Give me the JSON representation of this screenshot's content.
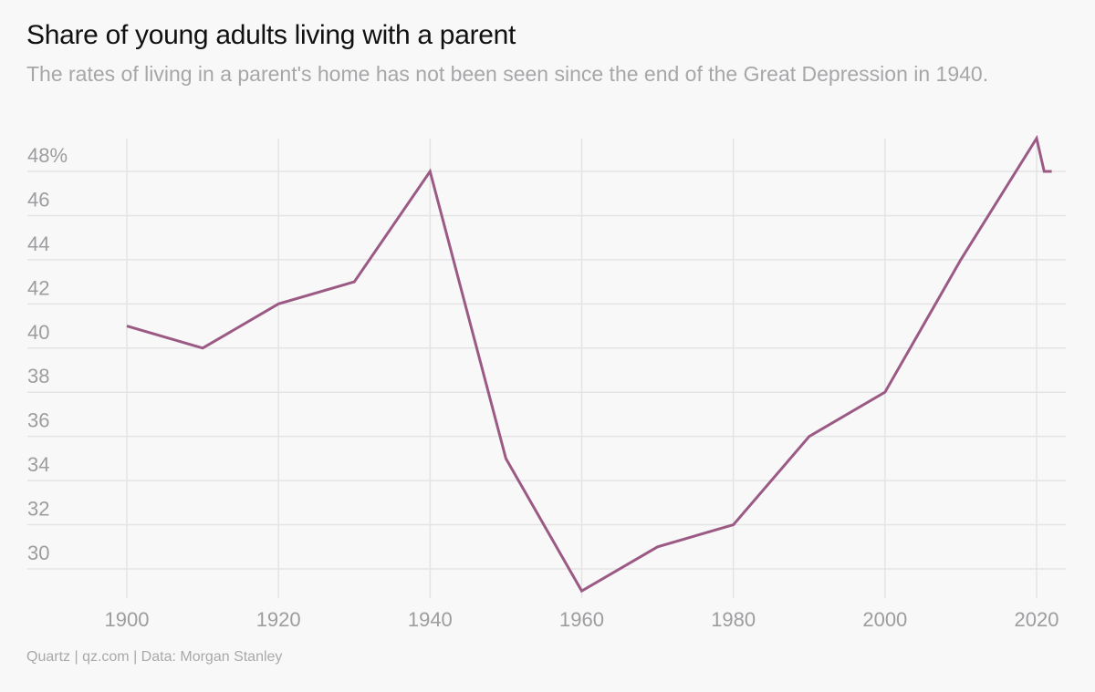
{
  "chart_data": {
    "type": "line",
    "title": "Share of young adults living with a parent",
    "subtitle": "The rates of living in a parent's home has not been seen since the end of the Great Depression in 1940.",
    "xlabel": "",
    "ylabel": "",
    "x": [
      1900,
      1910,
      1920,
      1930,
      1940,
      1950,
      1960,
      1970,
      1980,
      1990,
      2000,
      2010,
      2020,
      2021,
      2022
    ],
    "series": [
      {
        "name": "Share living with a parent (%)",
        "color": "#9b5a84",
        "values": [
          41,
          40,
          42,
          43,
          48,
          35,
          29,
          31,
          32,
          36,
          38,
          44,
          49.5,
          48,
          48
        ]
      }
    ],
    "xlim": [
      1900,
      2022
    ],
    "ylim": [
      28.8,
      49.8
    ],
    "yticks": [
      30,
      32,
      34,
      36,
      38,
      40,
      42,
      44,
      46,
      48
    ],
    "ytick_labels": [
      "30",
      "32",
      "34",
      "36",
      "38",
      "40",
      "42",
      "44",
      "46",
      "48%"
    ],
    "xticks": [
      1900,
      1920,
      1940,
      1960,
      1980,
      2000,
      2020
    ],
    "xtick_labels": [
      "1900",
      "1920",
      "1940",
      "1960",
      "1980",
      "2000",
      "2020"
    ],
    "grid": true,
    "legend": "none"
  },
  "footer": "Quartz | qz.com | Data: Morgan Stanley"
}
